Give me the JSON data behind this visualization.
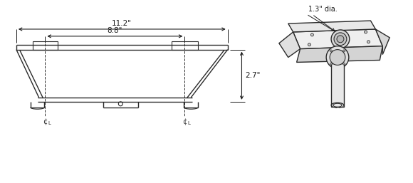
{
  "bg_color": "#ffffff",
  "line_color": "#2a2a2a",
  "dim_color": "#1a1a1a",
  "fig_width": 5.8,
  "fig_height": 2.57,
  "dpi": 100,
  "dim_11_2": "11.2\"",
  "dim_8_8": "8.8\"",
  "dim_2_7": "2.7\"",
  "dim_1_3": "1.3\" dia."
}
